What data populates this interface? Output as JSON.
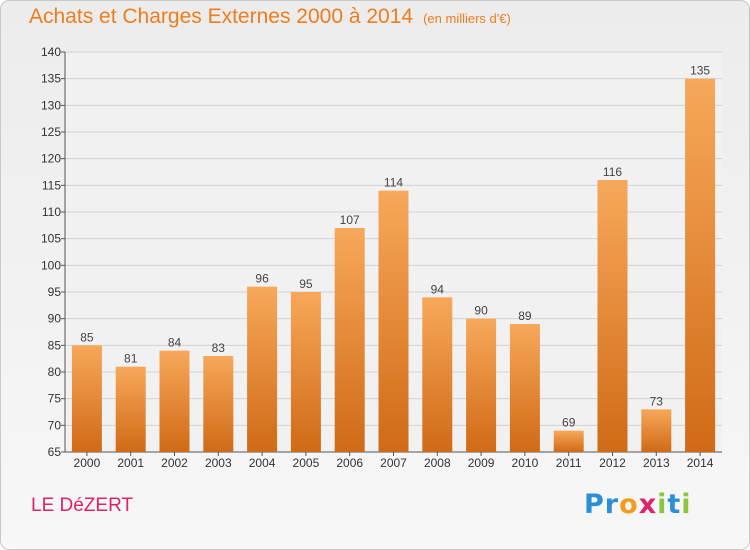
{
  "header": {
    "title": "Achats et Charges Externes 2000 à 2014",
    "unit": "(en milliers d'€)"
  },
  "footer": {
    "commune": "LE DéZERT"
  },
  "logo": {
    "letters": [
      {
        "ch": "P",
        "color": "#2b8ed8"
      },
      {
        "ch": "r",
        "color": "#2b8ed8"
      },
      {
        "ch": "o",
        "color": "#f39c1f"
      },
      {
        "ch": "x",
        "color": "#e0226c"
      },
      {
        "ch": "i",
        "color": "#8cc63f"
      },
      {
        "ch": "t",
        "color": "#2b8ed8"
      },
      {
        "ch": "i",
        "color": "#8cc63f"
      }
    ]
  },
  "colors": {
    "title": "#f07c1c",
    "commune": "#e0226c",
    "bar_light": "#f7a85a",
    "bar_dark": "#d06a16"
  },
  "chart_data": {
    "type": "bar",
    "categories": [
      "2000",
      "2001",
      "2002",
      "2003",
      "2004",
      "2005",
      "2006",
      "2007",
      "2008",
      "2009",
      "2010",
      "2011",
      "2012",
      "2013",
      "2014"
    ],
    "values": [
      85,
      81,
      84,
      83,
      96,
      95,
      107,
      114,
      94,
      90,
      89,
      69,
      116,
      73,
      135
    ],
    "ylim": [
      65,
      140
    ],
    "yticks": [
      65,
      70,
      75,
      80,
      85,
      90,
      95,
      100,
      105,
      110,
      115,
      120,
      125,
      130,
      135,
      140
    ],
    "grid": true,
    "data_labels": true
  }
}
